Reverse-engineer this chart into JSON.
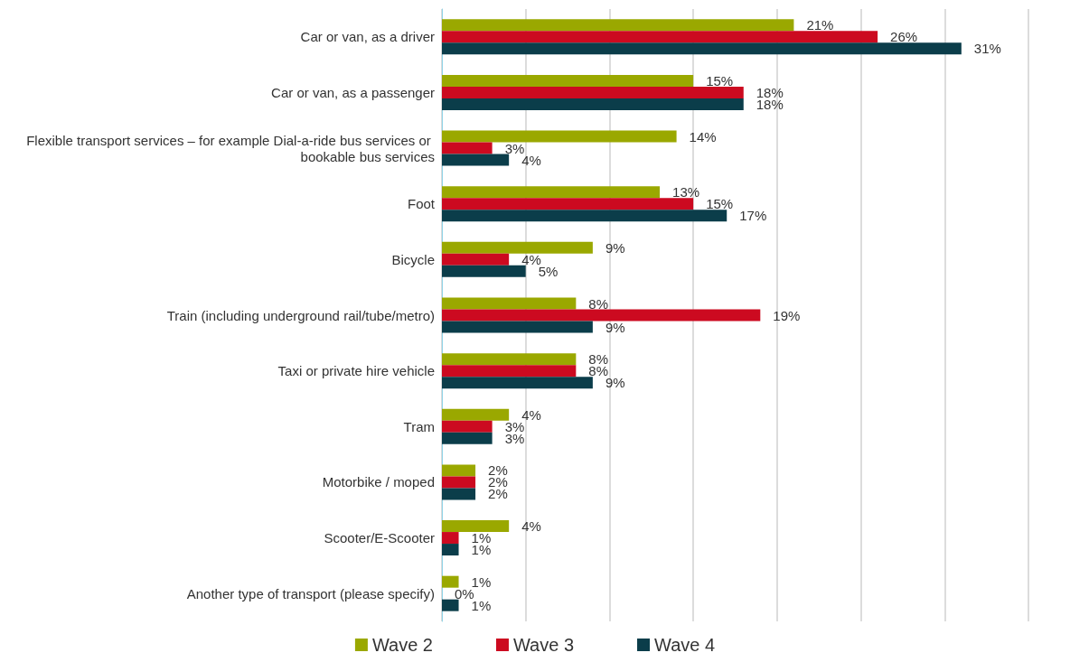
{
  "chart_data": {
    "type": "bar",
    "orientation": "horizontal",
    "categories": [
      "Car or van, as a driver",
      "Car or van, as a passenger",
      "Flexible transport services – for example Dial-a-ride bus services or bookable bus services",
      "Foot",
      "Bicycle",
      "Train (including underground rail/tube/metro)",
      "Taxi or private hire vehicle",
      "Tram",
      "Motorbike / moped",
      "Scooter/E-Scooter",
      "Another type of transport (please specify)"
    ],
    "series": [
      {
        "name": "Wave 2",
        "color": "#9aa800",
        "values": [
          21,
          15,
          14,
          13,
          9,
          8,
          8,
          4,
          2,
          4,
          1
        ],
        "value_labels": [
          "21%",
          "15%",
          "14%",
          "13%",
          "9%",
          "8%",
          "8%",
          "4%",
          "2%",
          "4%",
          "1%"
        ]
      },
      {
        "name": "Wave 3",
        "color": "#cc0a20",
        "values": [
          26,
          18,
          3,
          15,
          4,
          19,
          8,
          3,
          2,
          1,
          0
        ],
        "value_labels": [
          "26%",
          "18%",
          "3%",
          "15%",
          "4%",
          "19%",
          "8%",
          "3%",
          "2%",
          "1%",
          "0%"
        ]
      },
      {
        "name": "Wave 4",
        "color": "#0b3d4a",
        "values": [
          31,
          18,
          4,
          17,
          5,
          9,
          9,
          3,
          2,
          1,
          1
        ],
        "value_labels": [
          "31%",
          "18%",
          "4%",
          "17%",
          "5%",
          "9%",
          "9%",
          "3%",
          "2%",
          "1%",
          "1%"
        ]
      }
    ],
    "relative": false,
    "tick_labels": "y",
    "grid": "x",
    "legend": "bottom"
  }
}
